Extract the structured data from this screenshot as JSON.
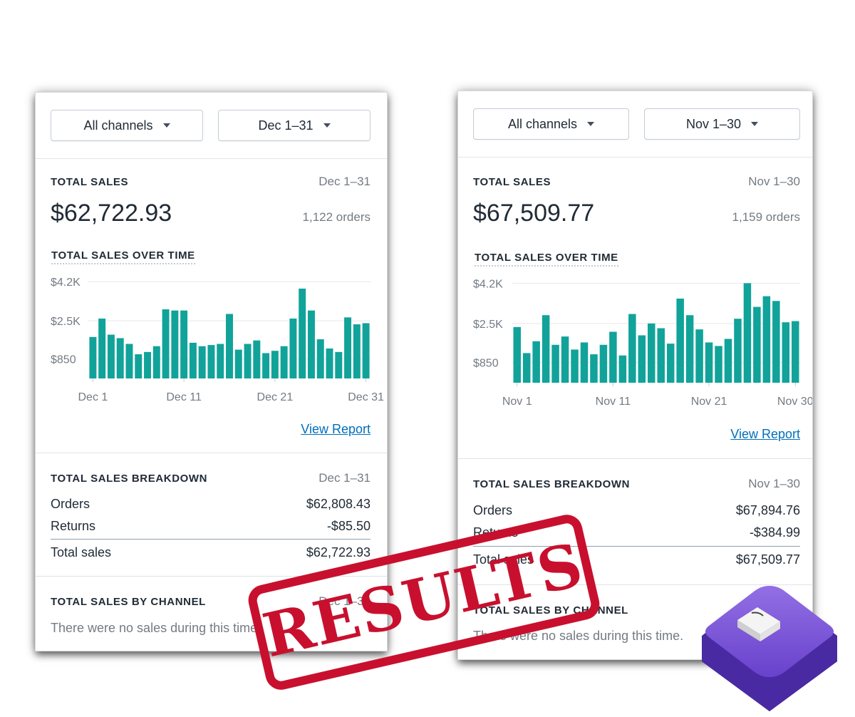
{
  "left": {
    "channels_label": "All channels",
    "range_label": "Dec 1–31",
    "total_sales_title": "TOTAL SALES",
    "total_sales_range": "Dec 1–31",
    "total_sales_amount": "$62,722.93",
    "orders_count": "1,122 orders",
    "over_time_title": "TOTAL SALES OVER TIME",
    "view_report": "View Report",
    "breakdown_title": "TOTAL SALES BREAKDOWN",
    "breakdown_range": "Dec 1–31",
    "rows": [
      {
        "label": "Orders",
        "value": "$62,808.43"
      },
      {
        "label": "Returns",
        "value": "-$85.50"
      },
      {
        "label": "Total sales",
        "value": "$62,722.93"
      }
    ],
    "channel_title": "TOTAL SALES BY CHANNEL",
    "channel_range": "Dec 1–31",
    "no_sales": "There were no sales during this time."
  },
  "right": {
    "channels_label": "All channels",
    "range_label": "Nov 1–30",
    "total_sales_title": "TOTAL SALES",
    "total_sales_range": "Nov 1–30",
    "total_sales_amount": "$67,509.77",
    "orders_count": "1,159 orders",
    "over_time_title": "TOTAL SALES OVER TIME",
    "view_report": "View Report",
    "breakdown_title": "TOTAL SALES BREAKDOWN",
    "breakdown_range": "Nov 1–30",
    "rows": [
      {
        "label": "Orders",
        "value": "$67,894.76"
      },
      {
        "label": "Returns",
        "value": "-$384.99"
      },
      {
        "label": "Total sales",
        "value": "$67,509.77"
      }
    ],
    "channel_title": "TOTAL SALES BY CHANNEL",
    "no_sales": "There were no sales during this time."
  },
  "stamp_text": "RESULTS",
  "colors": {
    "bar": "#11a39a",
    "link": "#006fbb",
    "stamp": "#c8102e",
    "logo": "#7b4fd6"
  },
  "chart_data": [
    {
      "type": "bar",
      "x": [
        1,
        2,
        3,
        4,
        5,
        6,
        7,
        8,
        9,
        10,
        11,
        12,
        13,
        14,
        15,
        16,
        17,
        18,
        19,
        20,
        21,
        22,
        23,
        24,
        25,
        26,
        27,
        28,
        29,
        30,
        31
      ],
      "values": [
        1800,
        2600,
        1900,
        1750,
        1500,
        1050,
        1150,
        1400,
        3000,
        2950,
        2950,
        1550,
        1400,
        1450,
        1500,
        2800,
        1250,
        1500,
        1650,
        1100,
        1200,
        1400,
        2600,
        3900,
        2950,
        1700,
        1300,
        1150,
        2650,
        2350,
        2400
      ],
      "yticks": [
        "$850",
        "$2.5K",
        "$4.2K"
      ],
      "ytick_values": [
        850,
        2500,
        4200
      ],
      "xticks": [
        "Dec 1",
        "Dec 11",
        "Dec 21",
        "Dec 31"
      ],
      "ylim": [
        0,
        4300
      ],
      "grid": true
    },
    {
      "type": "bar",
      "x": [
        1,
        2,
        3,
        4,
        5,
        6,
        7,
        8,
        9,
        10,
        11,
        12,
        13,
        14,
        15,
        16,
        17,
        18,
        19,
        20,
        21,
        22,
        23,
        24,
        25,
        26,
        27,
        28,
        29,
        30
      ],
      "values": [
        2350,
        1250,
        1750,
        2850,
        1600,
        1950,
        1400,
        1700,
        1200,
        1600,
        2150,
        1150,
        2900,
        2000,
        2500,
        2300,
        1650,
        3550,
        2850,
        2250,
        1700,
        1550,
        1850,
        2700,
        4200,
        3200,
        3650,
        3450,
        2550,
        2600
      ],
      "yticks": [
        "$850",
        "$2.5K",
        "$4.2K"
      ],
      "ytick_values": [
        850,
        2500,
        4200
      ],
      "xticks": [
        "Nov 1",
        "Nov 11",
        "Nov 21",
        "Nov 30"
      ],
      "ylim": [
        0,
        4300
      ],
      "grid": true
    }
  ]
}
